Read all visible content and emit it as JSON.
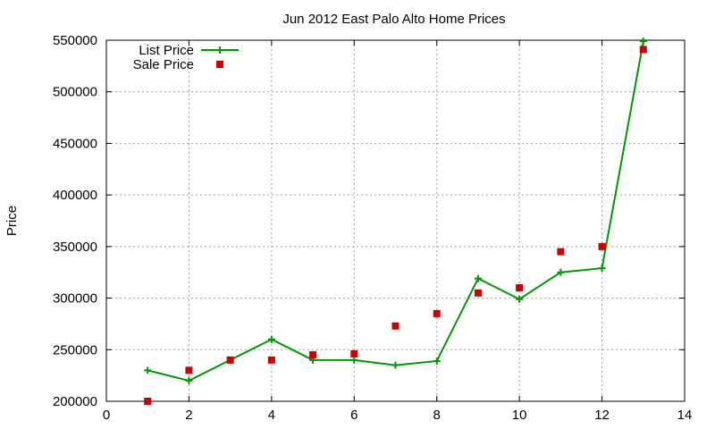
{
  "chart_data": {
    "type": "line",
    "title": "Jun 2012 East Palo Alto Home Prices",
    "xlabel": "",
    "ylabel": "Price",
    "xlim": [
      0,
      14
    ],
    "ylim": [
      200000,
      550000
    ],
    "x_ticks": [
      0,
      2,
      4,
      6,
      8,
      10,
      12,
      14
    ],
    "y_ticks": [
      200000,
      250000,
      300000,
      350000,
      400000,
      450000,
      500000,
      550000
    ],
    "grid": true,
    "legend": "top-left",
    "series": [
      {
        "name": "List Price",
        "style": "line+cross",
        "color": "#009900",
        "x": [
          1,
          2,
          3,
          4,
          5,
          6,
          7,
          8,
          9,
          10,
          11,
          12,
          13
        ],
        "values": [
          230000,
          220000,
          240000,
          260000,
          240000,
          240000,
          235000,
          239000,
          319000,
          299000,
          325000,
          329000,
          549000
        ]
      },
      {
        "name": "Sale Price",
        "style": "square",
        "color": "#cc0000",
        "x": [
          1,
          2,
          3,
          4,
          5,
          6,
          7,
          8,
          9,
          10,
          11,
          12,
          13
        ],
        "values": [
          200000,
          230000,
          240000,
          240000,
          245000,
          246000,
          273000,
          285000,
          305000,
          310000,
          345000,
          350000,
          541000
        ]
      }
    ]
  }
}
